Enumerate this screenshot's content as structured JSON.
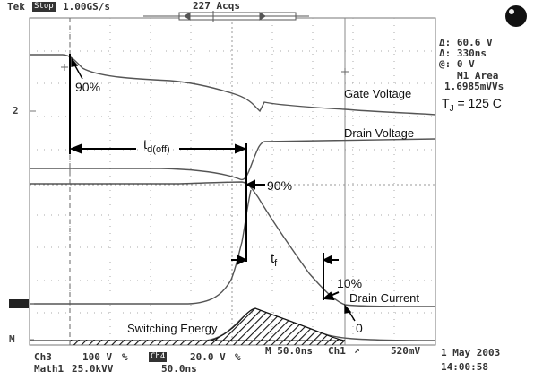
{
  "header": {
    "mode": "Tek",
    "state": "Stop",
    "sample_rate": "1.00GS/s",
    "acquisitions": "227 Acqs"
  },
  "cursor_readout": {
    "delta_v": "Δ: 60.6 V",
    "at_t": "Δ: 330ns",
    "at_v": "@: 0 V",
    "measure_name": "M1 Area",
    "measure_value": "1.6985mVVs"
  },
  "annotations": {
    "tj": "T",
    "tj_sub": "J",
    "tj_value": " = 125 C",
    "gate_voltage": "Gate Voltage",
    "drain_voltage": "Drain Voltage",
    "drain_current": "Drain Current",
    "switching_energy": "Switching Energy",
    "td_off_main": "t",
    "td_off_sub": "d(off)",
    "tf_main": "t",
    "tf_sub": "f",
    "pct_90_top": "90%",
    "pct_90_mid": "90%",
    "pct_10": "10%",
    "zero": "0"
  },
  "markers": {
    "ch2": "2",
    "math": "M"
  },
  "footer": {
    "ch3_label": "Ch3",
    "ch3_scale": "100 V",
    "ch3_coupling": "%",
    "ch4_label": "Ch4",
    "ch4_scale": "20.0 V",
    "ch4_coupling": "%",
    "timebase": "M 50.0ns",
    "trigger_src": "Ch1",
    "trigger_slope": "↗",
    "trigger_level": "520mV",
    "math_label": "Math1",
    "math_scale": "25.0kVV",
    "math_time": "50.0ns",
    "date": "1 May 2003",
    "time": "14:00:58"
  }
}
